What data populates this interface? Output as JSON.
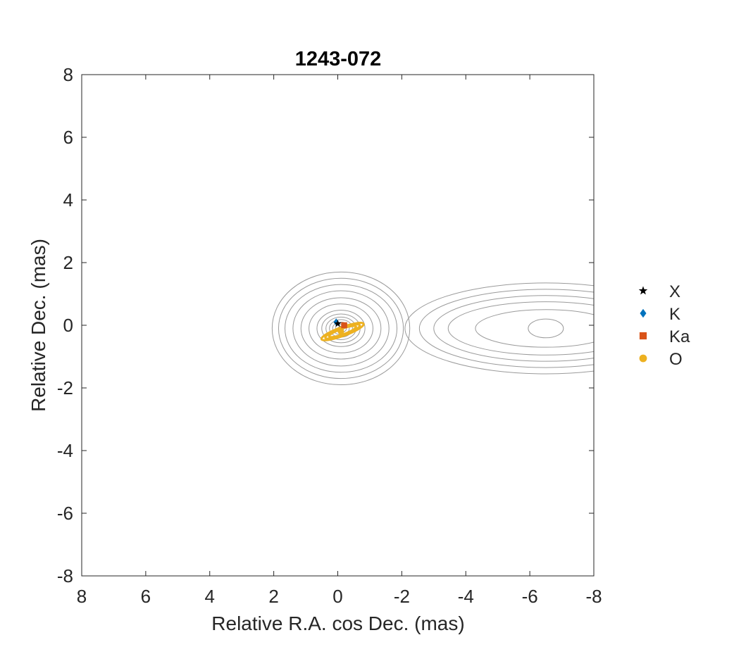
{
  "chart_data": {
    "type": "scatter",
    "title": "1243-072",
    "xlabel": "Relative R.A. cos Dec. (mas)",
    "ylabel": "Relative Dec. (mas)",
    "xlim": [
      8,
      -8
    ],
    "ylim": [
      -8,
      8
    ],
    "x_reversed": true,
    "xticks": [
      8,
      6,
      4,
      2,
      0,
      -2,
      -4,
      -6,
      -8
    ],
    "yticks": [
      -8,
      -6,
      -4,
      -2,
      0,
      2,
      4,
      6,
      8
    ],
    "xtick_labels": [
      "8",
      "6",
      "4",
      "2",
      "0",
      "-2",
      "-4",
      "-6",
      "-8"
    ],
    "ytick_labels": [
      "-8",
      "-6",
      "-4",
      "-2",
      "0",
      "2",
      "4",
      "6",
      "8"
    ],
    "grid": false,
    "legend_position": "right",
    "series": [
      {
        "name": "X",
        "marker": "star",
        "color": "#000000",
        "x": [
          0.0
        ],
        "y": [
          0.05
        ]
      },
      {
        "name": "K",
        "marker": "diamond",
        "color": "#0072BD",
        "x": [
          0.05
        ],
        "y": [
          0.1
        ]
      },
      {
        "name": "Ka",
        "marker": "square",
        "color": "#D95319",
        "x": [
          -0.2
        ],
        "y": [
          0.0
        ]
      },
      {
        "name": "O",
        "marker": "circle",
        "color": "#EDB120",
        "x": [
          -0.1
        ],
        "y": [
          -0.2
        ]
      }
    ],
    "error_ellipses": [
      {
        "series": "O",
        "color": "#EDB120",
        "cx": -0.15,
        "cy": -0.2,
        "semi_major": 0.7,
        "semi_minor": 0.14,
        "angle_deg": 20,
        "count": 3
      }
    ],
    "contours": {
      "color": "#9a9a9a",
      "components": [
        {
          "name": "core",
          "cx": -0.1,
          "cy": -0.1,
          "levels": [
            {
              "rx": 2.15,
              "ry": 1.8
            },
            {
              "rx": 1.95,
              "ry": 1.6
            },
            {
              "rx": 1.75,
              "ry": 1.4
            },
            {
              "rx": 1.5,
              "ry": 1.2
            },
            {
              "rx": 1.25,
              "ry": 0.98
            },
            {
              "rx": 1.0,
              "ry": 0.78
            },
            {
              "rx": 0.75,
              "ry": 0.58
            },
            {
              "rx": 0.6,
              "ry": 0.46
            },
            {
              "rx": 0.47,
              "ry": 0.36
            },
            {
              "rx": 0.36,
              "ry": 0.28
            },
            {
              "rx": 0.26,
              "ry": 0.2
            },
            {
              "rx": 0.17,
              "ry": 0.13
            },
            {
              "rx": 0.09,
              "ry": 0.07
            }
          ]
        },
        {
          "name": "jet",
          "cx": -6.5,
          "cy": -0.1,
          "levels": [
            {
              "rx": 4.4,
              "ry": 1.45
            },
            {
              "rx": 3.95,
              "ry": 1.25
            },
            {
              "rx": 3.5,
              "ry": 1.05
            },
            {
              "rx": 3.05,
              "ry": 0.85
            },
            {
              "rx": 2.2,
              "ry": 0.6
            },
            {
              "rx": 0.55,
              "ry": 0.3
            }
          ]
        }
      ]
    }
  }
}
